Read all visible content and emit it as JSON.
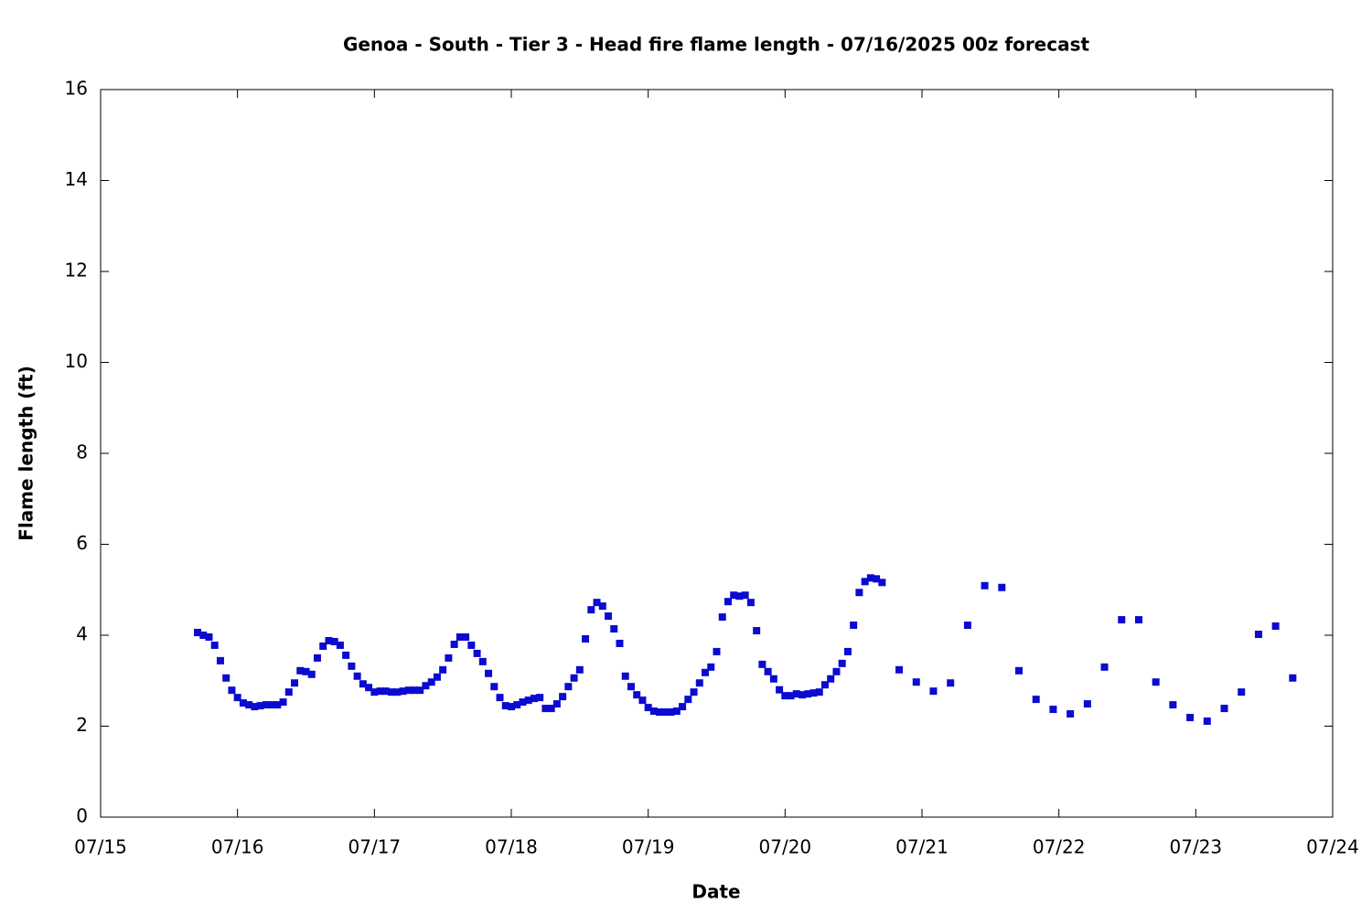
{
  "chart_data": {
    "type": "scatter",
    "title": "Genoa - South - Tier 3 - Head fire flame length - 07/16/2025 00z forecast",
    "x_label": "Date",
    "y_label": "Flame length (ft)",
    "color": "#0a0ad0",
    "x": [
      17,
      18,
      19,
      20,
      21,
      22,
      23,
      24,
      25,
      26,
      27,
      28,
      29,
      30,
      31,
      32,
      33,
      34,
      35,
      36,
      37,
      38,
      39,
      40,
      41,
      42,
      43,
      44,
      45,
      46,
      47,
      48,
      49,
      50,
      51,
      52,
      53,
      54,
      55,
      56,
      57,
      58,
      59,
      60,
      61,
      62,
      63,
      64,
      65,
      66,
      67,
      68,
      69,
      70,
      71,
      72,
      73,
      74,
      75,
      76,
      77,
      78,
      79,
      80,
      81,
      82,
      83,
      84,
      85,
      86,
      87,
      88,
      89,
      90,
      91,
      92,
      93,
      94,
      95,
      96,
      97,
      98,
      99,
      100,
      101,
      102,
      103,
      104,
      105,
      106,
      107,
      108,
      109,
      110,
      111,
      112,
      113,
      114,
      115,
      116,
      117,
      118,
      119,
      120,
      121,
      122,
      123,
      124,
      125,
      126,
      127,
      128,
      129,
      130,
      131,
      132,
      133,
      134,
      135,
      136,
      137,
      140,
      143,
      146,
      149,
      152,
      155,
      158,
      161,
      164,
      167,
      170,
      173,
      176,
      179,
      182,
      185,
      188,
      191,
      194,
      197,
      200,
      203,
      206,
      209
    ],
    "values": [
      4.06,
      4.0,
      3.96,
      3.78,
      3.44,
      3.06,
      2.79,
      2.63,
      2.51,
      2.47,
      2.43,
      2.45,
      2.47,
      2.47,
      2.47,
      2.53,
      2.75,
      2.95,
      3.22,
      3.2,
      3.14,
      3.5,
      3.76,
      3.88,
      3.86,
      3.78,
      3.56,
      3.32,
      3.1,
      2.93,
      2.85,
      2.75,
      2.77,
      2.77,
      2.75,
      2.75,
      2.77,
      2.79,
      2.79,
      2.79,
      2.89,
      2.97,
      3.08,
      3.24,
      3.5,
      3.8,
      3.96,
      3.96,
      3.78,
      3.6,
      3.42,
      3.16,
      2.87,
      2.63,
      2.45,
      2.43,
      2.47,
      2.53,
      2.57,
      2.61,
      2.63,
      2.39,
      2.39,
      2.49,
      2.65,
      2.87,
      3.06,
      3.24,
      3.92,
      4.56,
      4.72,
      4.64,
      4.42,
      4.14,
      3.82,
      3.1,
      2.87,
      2.69,
      2.57,
      2.41,
      2.33,
      2.31,
      2.31,
      2.31,
      2.33,
      2.43,
      2.59,
      2.75,
      2.95,
      3.18,
      3.3,
      3.64,
      4.4,
      4.74,
      4.88,
      4.86,
      4.88,
      4.72,
      4.1,
      3.36,
      3.2,
      3.04,
      2.8,
      2.67,
      2.67,
      2.71,
      2.69,
      2.71,
      2.73,
      2.75,
      2.91,
      3.04,
      3.2,
      3.38,
      3.64,
      4.22,
      4.94,
      5.18,
      5.26,
      5.24,
      5.16,
      3.24,
      2.97,
      2.77,
      2.95,
      4.22,
      5.09,
      5.05,
      3.22,
      2.59,
      2.37,
      2.27,
      2.49,
      3.3,
      4.34,
      4.34,
      2.97,
      2.47,
      2.19,
      2.11,
      2.39,
      2.75,
      4.02,
      4.2,
      3.06
    ],
    "xlim": [
      0,
      216
    ],
    "xticks": [
      {
        "value": 0,
        "label": "07/15"
      },
      {
        "value": 24,
        "label": "07/16"
      },
      {
        "value": 48,
        "label": "07/17"
      },
      {
        "value": 72,
        "label": "07/18"
      },
      {
        "value": 96,
        "label": "07/19"
      },
      {
        "value": 120,
        "label": "07/20"
      },
      {
        "value": 144,
        "label": "07/21"
      },
      {
        "value": 168,
        "label": "07/22"
      },
      {
        "value": 192,
        "label": "07/23"
      },
      {
        "value": 216,
        "label": "07/24"
      }
    ],
    "ylim": [
      0,
      16
    ],
    "yticks": [
      0,
      2,
      4,
      6,
      8,
      10,
      12,
      14,
      16
    ]
  }
}
